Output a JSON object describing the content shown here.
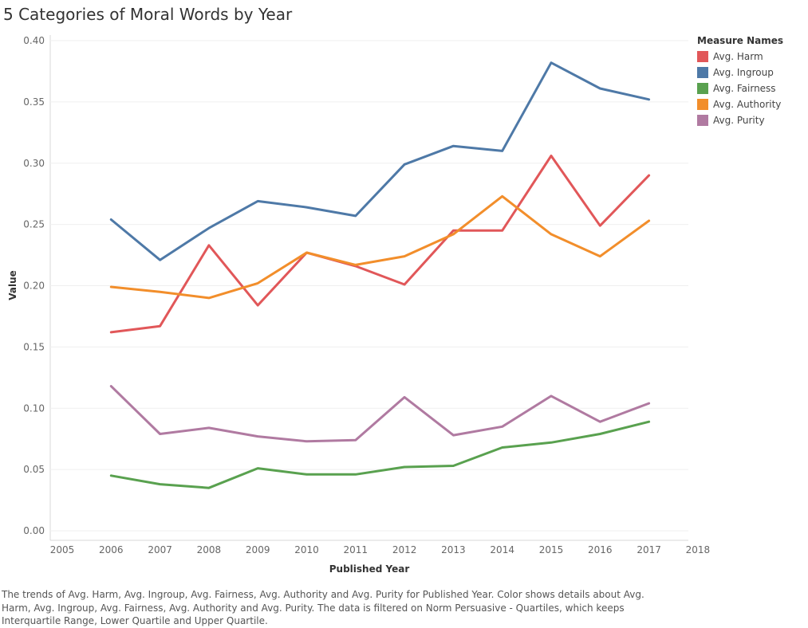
{
  "title": "5 Categories of Moral Words by Year",
  "legend": {
    "title": "Measure Names",
    "items": [
      {
        "label": "Avg. Harm",
        "color": "#e15759"
      },
      {
        "label": "Avg. Ingroup",
        "color": "#4e79a7"
      },
      {
        "label": "Avg. Fairness",
        "color": "#59a14f"
      },
      {
        "label": "Avg. Authority",
        "color": "#f28e2b"
      },
      {
        "label": "Avg. Purity",
        "color": "#b07aa1"
      }
    ]
  },
  "caption": "The trends of Avg. Harm, Avg. Ingroup, Avg. Fairness, Avg. Authority and Avg. Purity for Published Year.  Color shows details about Avg. Harm, Avg. Ingroup, Avg. Fairness, Avg. Authority and Avg. Purity. The data is filtered on Norm Persuasive - Quartiles, which keeps Interquartile Range, Lower Quartile and Upper Quartile.",
  "chart_data": {
    "type": "line",
    "xlabel": "Published Year",
    "ylabel": "Value",
    "xlim": [
      2005,
      2018
    ],
    "ylim": [
      0,
      0.4
    ],
    "x_ticks": [
      2005,
      2006,
      2007,
      2008,
      2009,
      2010,
      2011,
      2012,
      2013,
      2014,
      2015,
      2016,
      2017,
      2018
    ],
    "y_ticks": [
      "0.00",
      "0.05",
      "0.10",
      "0.15",
      "0.20",
      "0.25",
      "0.30",
      "0.35",
      "0.40"
    ],
    "grid": true,
    "x": [
      2006,
      2007,
      2008,
      2009,
      2010,
      2011,
      2012,
      2013,
      2014,
      2015,
      2016,
      2017
    ],
    "series": [
      {
        "name": "Avg. Harm",
        "color": "#e15759",
        "values": [
          0.162,
          0.167,
          0.233,
          0.184,
          0.227,
          0.216,
          0.201,
          0.245,
          0.245,
          0.306,
          0.249,
          0.29
        ]
      },
      {
        "name": "Avg. Ingroup",
        "color": "#4e79a7",
        "values": [
          0.254,
          0.221,
          0.247,
          0.269,
          0.264,
          0.257,
          0.299,
          0.314,
          0.31,
          0.382,
          0.361,
          0.352
        ]
      },
      {
        "name": "Avg. Fairness",
        "color": "#59a14f",
        "values": [
          0.045,
          0.038,
          0.035,
          0.051,
          0.046,
          0.046,
          0.052,
          0.053,
          0.068,
          0.072,
          0.079,
          0.089
        ]
      },
      {
        "name": "Avg. Authority",
        "color": "#f28e2b",
        "values": [
          0.199,
          0.195,
          0.19,
          0.202,
          0.227,
          0.217,
          0.224,
          0.242,
          0.273,
          0.242,
          0.224,
          0.253
        ]
      },
      {
        "name": "Avg. Purity",
        "color": "#b07aa1",
        "values": [
          0.118,
          0.079,
          0.084,
          0.077,
          0.073,
          0.074,
          0.109,
          0.078,
          0.085,
          0.11,
          0.089,
          0.104
        ]
      }
    ]
  }
}
